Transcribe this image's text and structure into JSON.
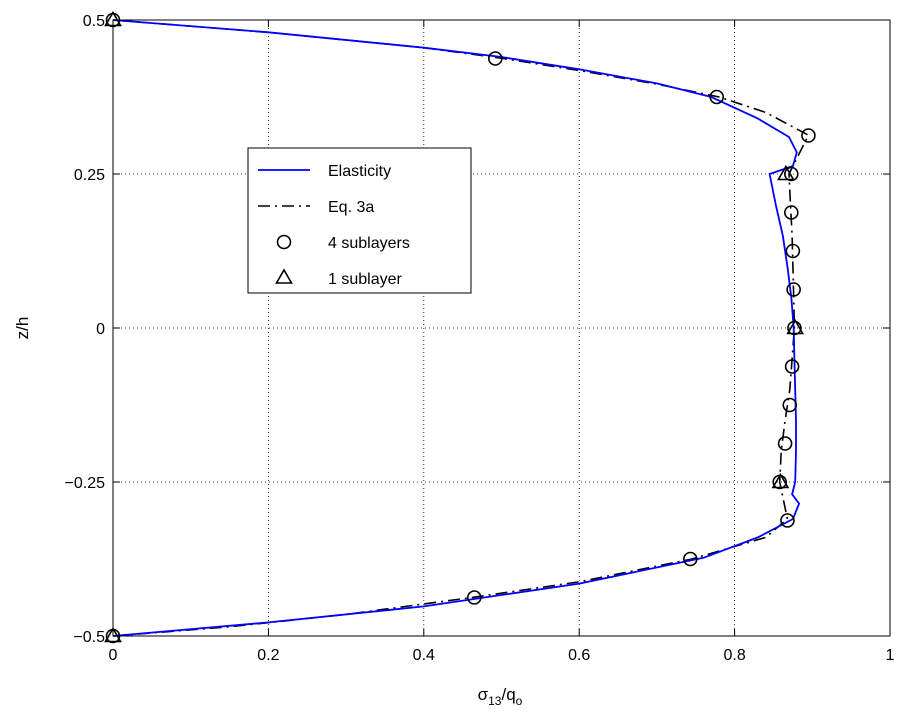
{
  "chart_data": {
    "type": "line",
    "xlabel": "σ13/qo",
    "xlabel_parts": {
      "base": "σ",
      "base_sub": "13",
      "sep": "/q",
      "tail_sub": "o"
    },
    "ylabel": "z/h",
    "xlim": [
      0,
      1
    ],
    "ylim": [
      -0.5,
      0.5
    ],
    "x_ticks": [
      0,
      0.2,
      0.4,
      0.6,
      0.8,
      1
    ],
    "x_tick_labels": [
      "0",
      "0.2",
      "0.4",
      "0.6",
      "0.8",
      "1"
    ],
    "y_ticks": [
      -0.5,
      -0.25,
      0,
      0.25,
      0.5
    ],
    "y_tick_labels": [
      "−0.5",
      "−0.25",
      "0",
      "0.25",
      "0.5"
    ],
    "grid": true,
    "legend_position": "upper-left-inside",
    "colors": {
      "elasticity": "#0000ff",
      "eq3a": "#000000",
      "markers": "#000000",
      "grid": "#000000"
    },
    "series": [
      {
        "name": "Elasticity",
        "style": "solid",
        "points": [
          [
            0,
            0.5
          ],
          [
            0.2,
            0.48
          ],
          [
            0.4,
            0.455
          ],
          [
            0.5,
            0.44
          ],
          [
            0.6,
            0.42
          ],
          [
            0.7,
            0.397
          ],
          [
            0.77,
            0.375
          ],
          [
            0.83,
            0.34
          ],
          [
            0.87,
            0.31
          ],
          [
            0.88,
            0.285
          ],
          [
            0.875,
            0.263
          ],
          [
            0.845,
            0.25
          ],
          [
            0.853,
            0.2
          ],
          [
            0.862,
            0.15
          ],
          [
            0.868,
            0.1
          ],
          [
            0.873,
            0.05
          ],
          [
            0.876,
            0
          ],
          [
            0.877,
            -0.05
          ],
          [
            0.878,
            -0.1
          ],
          [
            0.879,
            -0.15
          ],
          [
            0.879,
            -0.2
          ],
          [
            0.878,
            -0.25
          ],
          [
            0.874,
            -0.27
          ],
          [
            0.883,
            -0.285
          ],
          [
            0.875,
            -0.31
          ],
          [
            0.83,
            -0.34
          ],
          [
            0.76,
            -0.373
          ],
          [
            0.6,
            -0.415
          ],
          [
            0.4,
            -0.452
          ],
          [
            0.2,
            -0.478
          ],
          [
            0,
            -0.5
          ]
        ]
      },
      {
        "name": "Eq. 3a",
        "style": "dash-dot",
        "points": [
          [
            0,
            0.5
          ],
          [
            0.2,
            0.48
          ],
          [
            0.4,
            0.455
          ],
          [
            0.5,
            0.438
          ],
          [
            0.6,
            0.418
          ],
          [
            0.7,
            0.396
          ],
          [
            0.78,
            0.375
          ],
          [
            0.84,
            0.35
          ],
          [
            0.895,
            0.313
          ],
          [
            0.87,
            0.25
          ],
          [
            0.872,
            0.2
          ],
          [
            0.874,
            0.15
          ],
          [
            0.875,
            0.1
          ],
          [
            0.876,
            0.05
          ],
          [
            0.877,
            0
          ],
          [
            0.874,
            -0.05
          ],
          [
            0.871,
            -0.1
          ],
          [
            0.865,
            -0.15
          ],
          [
            0.86,
            -0.2
          ],
          [
            0.858,
            -0.25
          ],
          [
            0.868,
            -0.31
          ],
          [
            0.84,
            -0.34
          ],
          [
            0.745,
            -0.375
          ],
          [
            0.6,
            -0.412
          ],
          [
            0.465,
            -0.437
          ],
          [
            0.3,
            -0.465
          ],
          [
            0.15,
            -0.485
          ],
          [
            0,
            -0.5
          ]
        ]
      },
      {
        "name": "4 sublayers",
        "style": "circle-markers",
        "points": [
          [
            0,
            0.5
          ],
          [
            0.492,
            0.4375
          ],
          [
            0.777,
            0.375
          ],
          [
            0.895,
            0.3125
          ],
          [
            0.873,
            0.25
          ],
          [
            0.873,
            0.1875
          ],
          [
            0.875,
            0.125
          ],
          [
            0.876,
            0.0625
          ],
          [
            0.877,
            0
          ],
          [
            0.874,
            -0.0625
          ],
          [
            0.871,
            -0.125
          ],
          [
            0.865,
            -0.1875
          ],
          [
            0.858,
            -0.25
          ],
          [
            0.868,
            -0.3125
          ],
          [
            0.743,
            -0.375
          ],
          [
            0.465,
            -0.4375
          ],
          [
            0,
            -0.5
          ]
        ]
      },
      {
        "name": "1 sublayer",
        "style": "triangle-markers",
        "points": [
          [
            0,
            0.5
          ],
          [
            0.866,
            0.25
          ],
          [
            0.878,
            0
          ],
          [
            0.859,
            -0.25
          ],
          [
            0,
            -0.5
          ]
        ]
      }
    ]
  }
}
